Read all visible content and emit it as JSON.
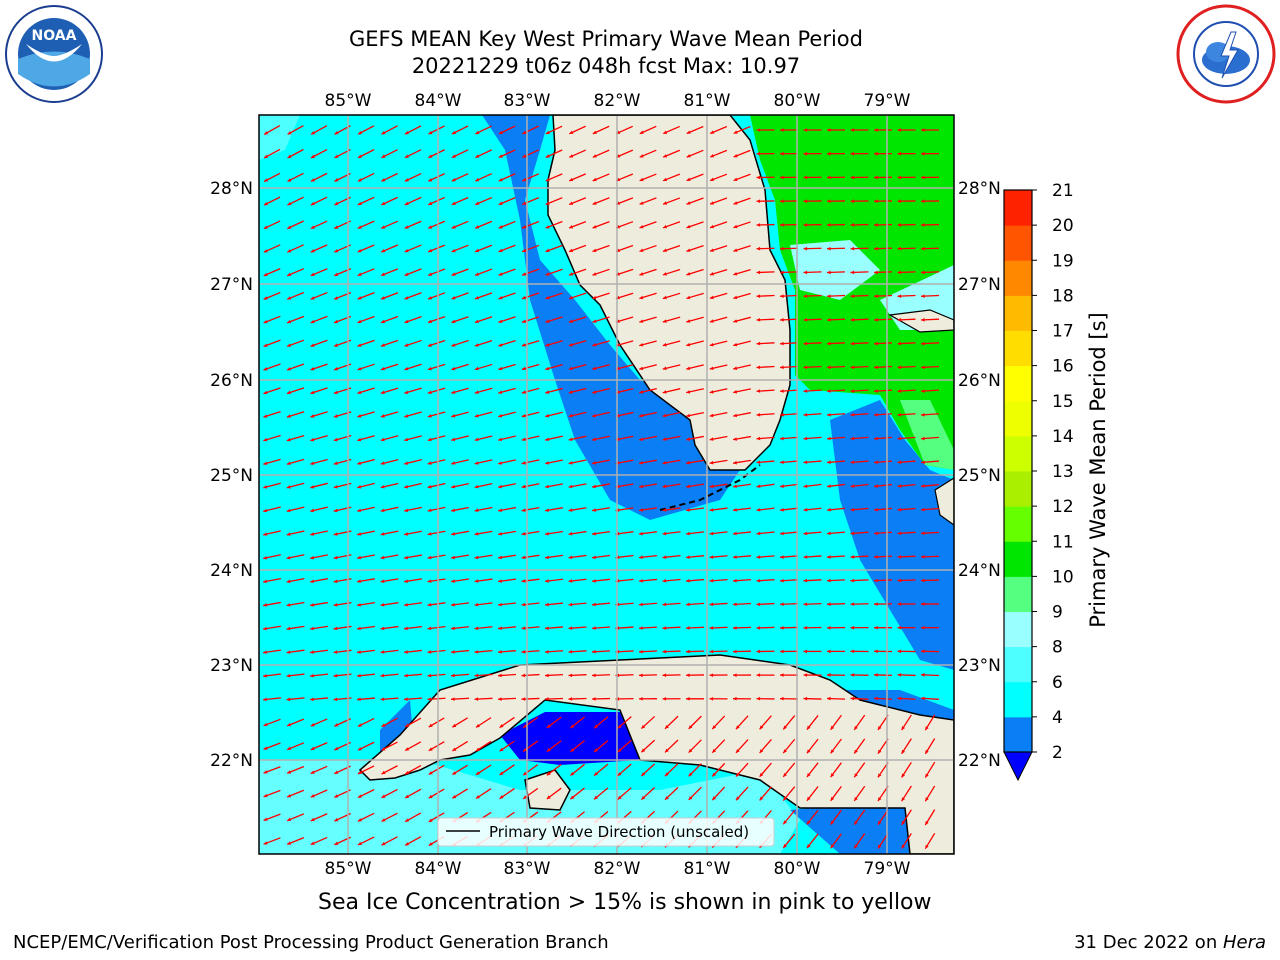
{
  "header": {
    "title_line1": "GEFS MEAN Key West Primary Wave Mean Period",
    "title_line2": "20221229 t06z 048h fcst   Max: 10.97"
  },
  "logos": {
    "left": "NOAA",
    "right": "NATIONAL WEATHER SERVICE"
  },
  "map": {
    "lon_labels": [
      "85°W",
      "84°W",
      "83°W",
      "82°W",
      "81°W",
      "80°W",
      "79°W"
    ],
    "lat_labels": [
      "28°N",
      "27°N",
      "26°N",
      "25°N",
      "24°N",
      "23°N",
      "22°N"
    ],
    "legend_label": "Primary Wave Direction (unscaled)",
    "colors": {
      "land": "#eeeddd",
      "ocean_cyan": "#00ffff",
      "ocean_blue": "#0a7ff5",
      "deep_blue": "#0000ff",
      "green": "#00e600",
      "arrow": "#ff0000",
      "grid": "#b0b0b0"
    }
  },
  "colorbar": {
    "label": "Primary Wave Mean Period [s]",
    "ticks": [
      "2",
      "4",
      "6",
      "8",
      "9",
      "10",
      "11",
      "12",
      "13",
      "14",
      "15",
      "16",
      "17",
      "18",
      "19",
      "20",
      "21"
    ],
    "colors": [
      "#0a7ff5",
      "#00ffff",
      "#4dffff",
      "#99ffff",
      "#55ff80",
      "#00e600",
      "#66ff00",
      "#aaee00",
      "#ccff00",
      "#eeff00",
      "#ffff00",
      "#ffdd00",
      "#ffbb00",
      "#ff8800",
      "#ff5500",
      "#ff2200"
    ]
  },
  "footer": {
    "ice_note": "Sea Ice Concentration > 15% is shown in pink to yellow",
    "left": "NCEP/EMC/Verification Post Processing Product Generation Branch",
    "date": "31 Dec 2022 on ",
    "host": "Hera"
  }
}
